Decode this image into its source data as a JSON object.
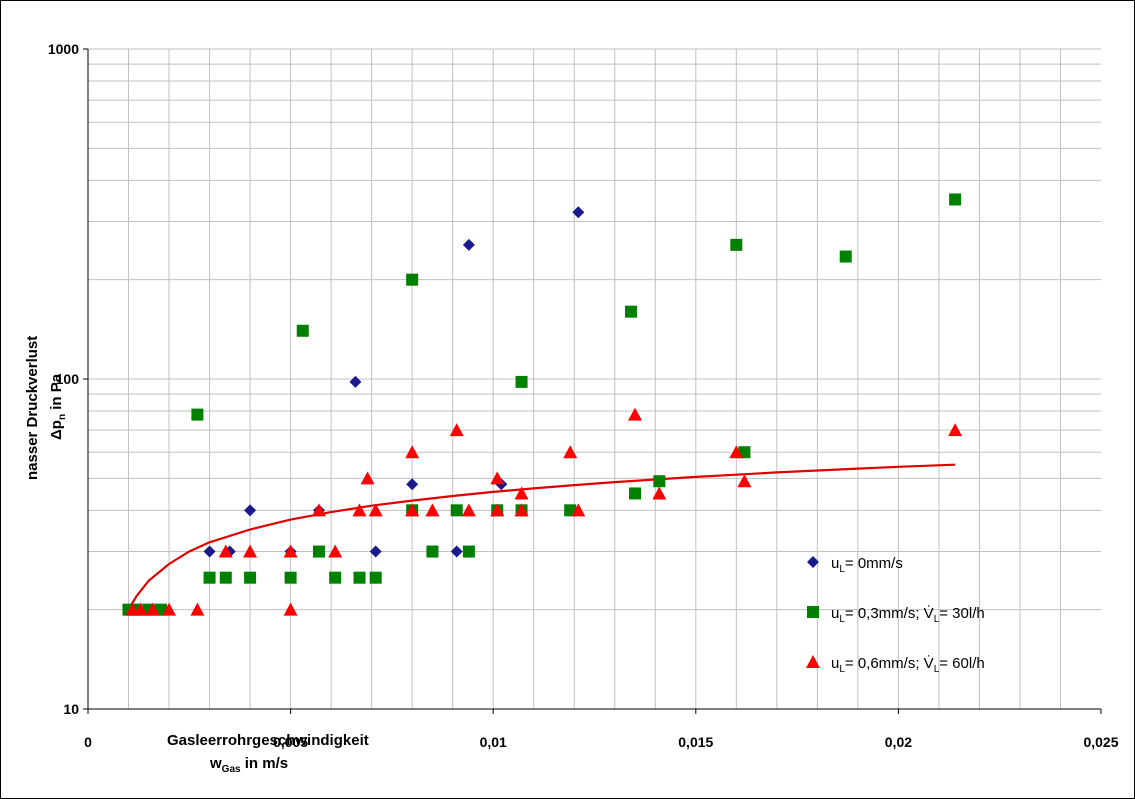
{
  "chart_data": {
    "type": "scatter",
    "title": "",
    "xlabel": "Gasleerrohrgeschwindigkeit",
    "xlabel_line2_main": "w",
    "xlabel_line2_sub": "Gas",
    "xlabel_line2_rest": " in m/s",
    "ylabel_line1": "nasser Druckverlust",
    "ylabel_line2_main": "Δp",
    "ylabel_line2_sub": "n",
    "ylabel_line2_rest": " in Pa",
    "xlim": [
      0,
      0.025
    ],
    "ylim": [
      10,
      1000
    ],
    "y_scale": "log",
    "grid": true,
    "legend_position": "bottom-right",
    "x_ticks": [
      "0",
      "0,005",
      "0,01",
      "0,015",
      "0,02",
      "0,025"
    ],
    "x_tick_values": [
      0,
      0.005,
      0.01,
      0.015,
      0.02,
      0.025
    ],
    "y_ticks": [
      "10",
      "100",
      "1000"
    ],
    "y_tick_values": [
      10,
      100,
      1000
    ],
    "series": [
      {
        "name": "uL= 0mm/s",
        "legend_main": "u",
        "legend_sub": "L",
        "legend_rest": "= 0mm/s",
        "marker": "diamond",
        "color": "#1a1a8c",
        "points": [
          [
            0.001,
            20
          ],
          [
            0.0012,
            20
          ],
          [
            0.0015,
            20
          ],
          [
            0.0018,
            20
          ],
          [
            0.003,
            30
          ],
          [
            0.0035,
            30
          ],
          [
            0.004,
            40
          ],
          [
            0.005,
            30
          ],
          [
            0.0057,
            40
          ],
          [
            0.0066,
            98
          ],
          [
            0.0071,
            30
          ],
          [
            0.008,
            48
          ],
          [
            0.0091,
            30
          ],
          [
            0.0094,
            255
          ],
          [
            0.0102,
            48
          ],
          [
            0.0121,
            320
          ]
        ]
      },
      {
        "name": "uL= 0,3mm/s; V̇L= 30l/h",
        "legend_main": "u",
        "legend_sub": "L",
        "legend_rest": "= 0,3mm/s; V̇",
        "legend_sub2": "L",
        "legend_rest2": "= 30l/h",
        "marker": "square",
        "color": "#008000",
        "points": [
          [
            0.001,
            20
          ],
          [
            0.0012,
            20
          ],
          [
            0.0015,
            20
          ],
          [
            0.0018,
            20
          ],
          [
            0.0027,
            78
          ],
          [
            0.003,
            25
          ],
          [
            0.0034,
            25
          ],
          [
            0.004,
            25
          ],
          [
            0.005,
            25
          ],
          [
            0.0053,
            140
          ],
          [
            0.0057,
            30
          ],
          [
            0.0061,
            25
          ],
          [
            0.0067,
            25
          ],
          [
            0.0071,
            25
          ],
          [
            0.008,
            200
          ],
          [
            0.008,
            40
          ],
          [
            0.0085,
            30
          ],
          [
            0.0091,
            40
          ],
          [
            0.0094,
            30
          ],
          [
            0.0101,
            40
          ],
          [
            0.0107,
            98
          ],
          [
            0.0107,
            40
          ],
          [
            0.0119,
            40
          ],
          [
            0.0134,
            160
          ],
          [
            0.0135,
            45
          ],
          [
            0.0141,
            49
          ],
          [
            0.016,
            255
          ],
          [
            0.0162,
            60
          ],
          [
            0.0187,
            235
          ],
          [
            0.0214,
            350
          ]
        ]
      },
      {
        "name": "uL= 0,6mm/s; V̇L= 60l/h",
        "legend_main": "u",
        "legend_sub": "L",
        "legend_rest": "= 0,6mm/s; V̇",
        "legend_sub2": "L",
        "legend_rest2": "= 60l/h",
        "marker": "triangle",
        "color": "#ff0000",
        "points": [
          [
            0.0011,
            20
          ],
          [
            0.0013,
            20
          ],
          [
            0.0016,
            20
          ],
          [
            0.002,
            20
          ],
          [
            0.0027,
            20
          ],
          [
            0.0034,
            30
          ],
          [
            0.004,
            30
          ],
          [
            0.005,
            30
          ],
          [
            0.005,
            20
          ],
          [
            0.0057,
            40
          ],
          [
            0.0061,
            30
          ],
          [
            0.0067,
            40
          ],
          [
            0.0069,
            50
          ],
          [
            0.0071,
            40
          ],
          [
            0.008,
            60
          ],
          [
            0.008,
            40
          ],
          [
            0.0085,
            40
          ],
          [
            0.0091,
            70
          ],
          [
            0.0094,
            40
          ],
          [
            0.0101,
            40
          ],
          [
            0.0101,
            50
          ],
          [
            0.0107,
            40
          ],
          [
            0.0107,
            45
          ],
          [
            0.0119,
            60
          ],
          [
            0.0121,
            40
          ],
          [
            0.0135,
            78
          ],
          [
            0.0141,
            45
          ],
          [
            0.016,
            60
          ],
          [
            0.0162,
            49
          ],
          [
            0.0214,
            70
          ]
        ]
      }
    ],
    "trendline": {
      "color": "#e00000",
      "points": [
        [
          0.001,
          20.0
        ],
        [
          0.0012,
          22.0
        ],
        [
          0.0015,
          24.5
        ],
        [
          0.002,
          27.5
        ],
        [
          0.0025,
          30.0
        ],
        [
          0.003,
          32.0
        ],
        [
          0.004,
          35.0
        ],
        [
          0.005,
          37.5
        ],
        [
          0.006,
          39.5
        ],
        [
          0.007,
          41.3
        ],
        [
          0.008,
          42.8
        ],
        [
          0.009,
          44.2
        ],
        [
          0.01,
          45.5
        ],
        [
          0.011,
          46.6
        ],
        [
          0.012,
          47.7
        ],
        [
          0.013,
          48.7
        ],
        [
          0.014,
          49.6
        ],
        [
          0.015,
          50.5
        ],
        [
          0.016,
          51.3
        ],
        [
          0.017,
          52.1
        ],
        [
          0.018,
          52.8
        ],
        [
          0.019,
          53.5
        ],
        [
          0.02,
          54.2
        ],
        [
          0.0214,
          55.0
        ]
      ]
    }
  }
}
